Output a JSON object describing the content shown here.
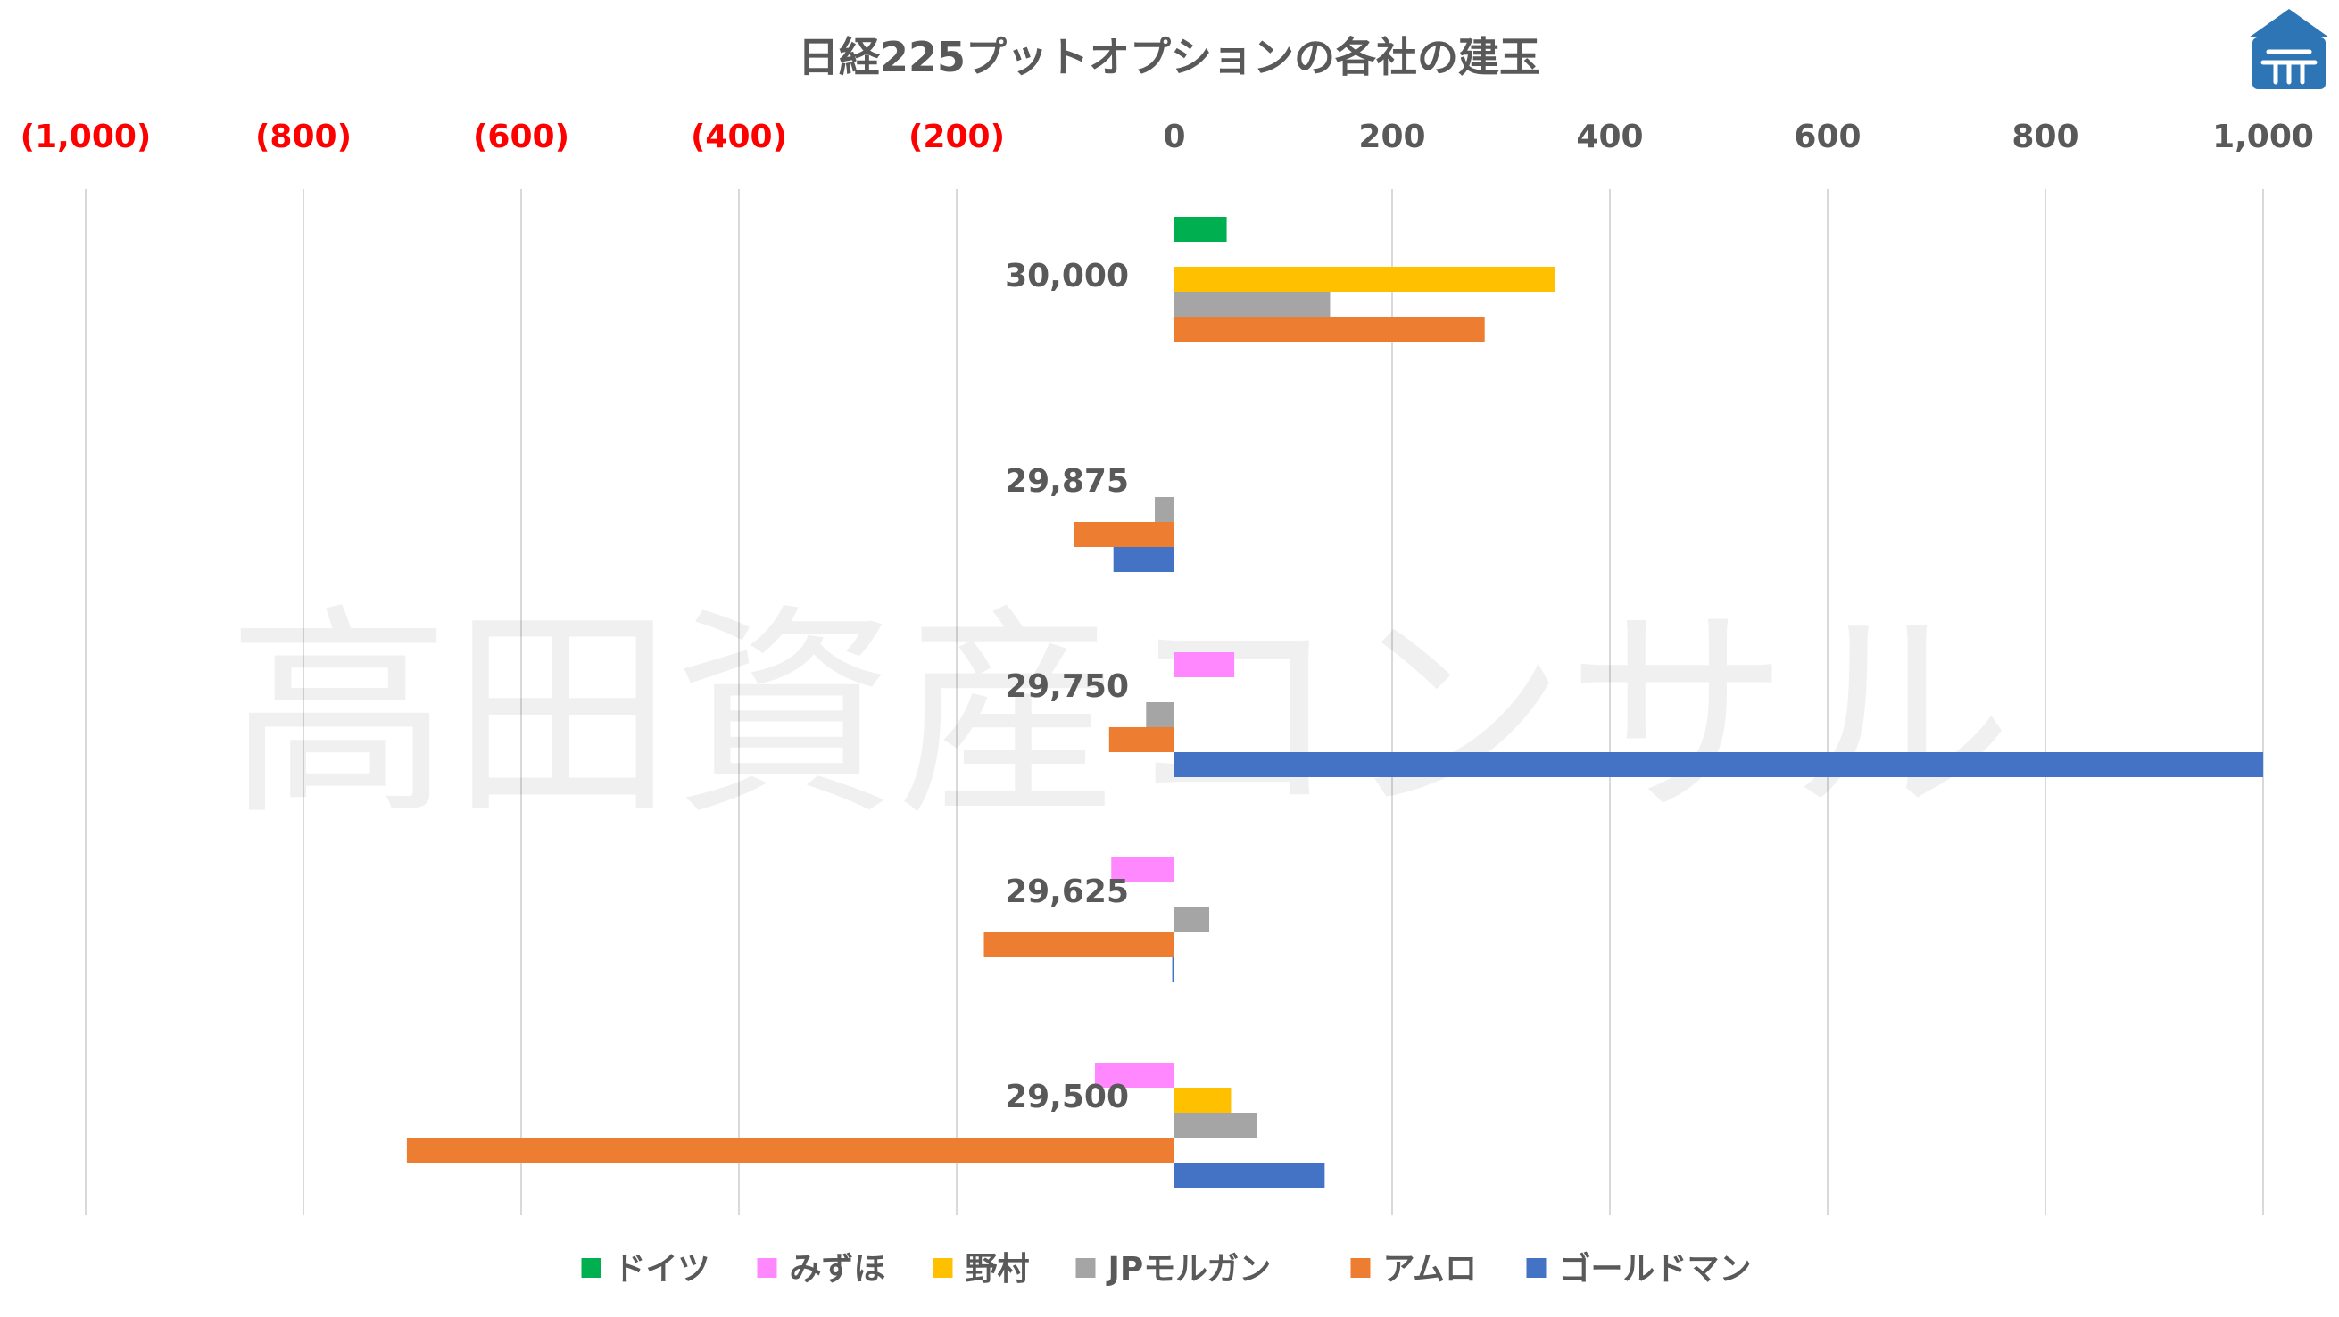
{
  "watermark_text": "高田資産コンサル",
  "colors": {
    "text": "#595959",
    "negative_tick": "#ff0000",
    "grid": "#d9d9d9",
    "logo": "#2e75b6"
  },
  "chart_data": {
    "type": "bar",
    "orientation": "horizontal",
    "title": "日経225プットオプションの各社の建玉",
    "xlim": [
      -1000,
      1000
    ],
    "ticks": [
      -1000,
      -800,
      -600,
      -400,
      -200,
      0,
      200,
      400,
      600,
      800,
      1000
    ],
    "tick_labels": [
      "(1,000)",
      "(800)",
      "(600)",
      "(400)",
      "(200)",
      "0",
      "200",
      "400",
      "600",
      "800",
      "1,000"
    ],
    "negative_tick_color": "#ff0000",
    "grid": true,
    "legend_position": "bottom",
    "categories": [
      "30,000",
      "29,875",
      "29,750",
      "29,625",
      "29,500"
    ],
    "series": [
      {
        "name": "ドイツ",
        "color": "#00b050",
        "values": [
          48,
          0,
          0,
          0,
          0
        ]
      },
      {
        "name": "みずほ",
        "color": "#ff88ff",
        "values": [
          0,
          0,
          55,
          -58,
          -73
        ]
      },
      {
        "name": "野村",
        "color": "#ffc000",
        "values": [
          350,
          0,
          0,
          0,
          52
        ]
      },
      {
        "name": "JPモルガン",
        "color": "#a5a5a5",
        "values": [
          143,
          -18,
          -26,
          32,
          76
        ]
      },
      {
        "name": "アムロ",
        "color": "#ed7d31",
        "values": [
          285,
          -92,
          -60,
          -175,
          -705
        ]
      },
      {
        "name": "ゴールドマン",
        "color": "#4472c4",
        "values": [
          0,
          -56,
          1000,
          -2,
          138
        ]
      }
    ]
  }
}
